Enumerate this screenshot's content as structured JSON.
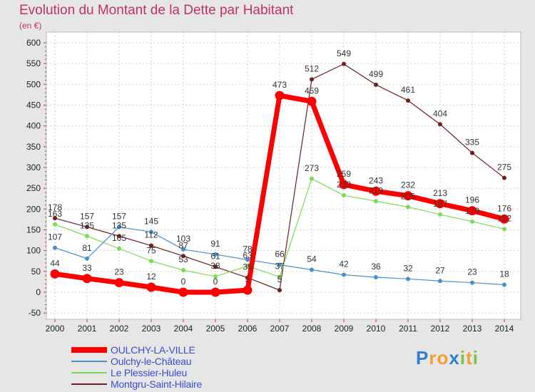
{
  "chart_data": {
    "type": "line",
    "title": "Evolution du Montant de la Dette par Habitant",
    "unit_label": "(en €)",
    "x": [
      "2000",
      "2001",
      "2002",
      "2003",
      "2004",
      "2005",
      "2006",
      "2007",
      "2008",
      "2009",
      "2010",
      "2011",
      "2012",
      "2013",
      "2014"
    ],
    "ylim": [
      -50,
      600
    ],
    "yticks": [
      "-50",
      "0",
      "50",
      "100",
      "150",
      "200",
      "250",
      "300",
      "350",
      "400",
      "450",
      "500",
      "550",
      "600"
    ],
    "series": [
      {
        "name": "OULCHY-LA-VILLE",
        "color": "#ff0000",
        "values": [
          44,
          33,
          23,
          12,
          0,
          0,
          5,
          473,
          459,
          259,
          243,
          232,
          213,
          196,
          176
        ],
        "labels": [
          "44",
          "33",
          "23",
          "12",
          "0",
          "0",
          "5",
          "473",
          "459",
          "259",
          "243",
          "232",
          "213",
          "196",
          "176"
        ]
      },
      {
        "name": "Oulchy-le-Château",
        "color": "#4a90c8",
        "values": [
          107,
          81,
          157,
          145,
          103,
          91,
          78,
          66,
          54,
          42,
          36,
          32,
          27,
          23,
          18
        ],
        "labels": [
          "107",
          "81",
          "157",
          "145",
          "103",
          "91",
          "78",
          "66",
          "54",
          "42",
          "36",
          "32",
          "27",
          "23",
          "18"
        ]
      },
      {
        "name": "Le Plessier-Huleu",
        "color": "#7ed957",
        "values": [
          163,
          135,
          105,
          75,
          53,
          38,
          63,
          37,
          273,
          233,
          219,
          205,
          187,
          170,
          152
        ],
        "labels": [
          "163",
          "135",
          "105",
          "75",
          "53",
          "38",
          "63",
          "37",
          "273",
          "233",
          "219",
          "205",
          "187",
          "170",
          "152"
        ]
      },
      {
        "name": "Montgru-Saint-Hilaire",
        "color": "#6e1f1f",
        "values": [
          178,
          157,
          135,
          112,
          87,
          61,
          35,
          5,
          512,
          549,
          499,
          461,
          404,
          335,
          275
        ],
        "labels": [
          "178",
          "157",
          "135",
          "112",
          "87",
          "61",
          "35",
          "5",
          "512",
          "549",
          "499",
          "461",
          "404",
          "335",
          "275"
        ]
      }
    ]
  },
  "brand": {
    "letters": [
      "P",
      "r",
      "o",
      "x",
      "i",
      "t",
      "i"
    ],
    "colors": [
      "#2f7fd6",
      "#f0a030",
      "#f0a030",
      "#2f7fd6",
      "#7dc242",
      "#f0a030",
      "#7dc242"
    ]
  }
}
